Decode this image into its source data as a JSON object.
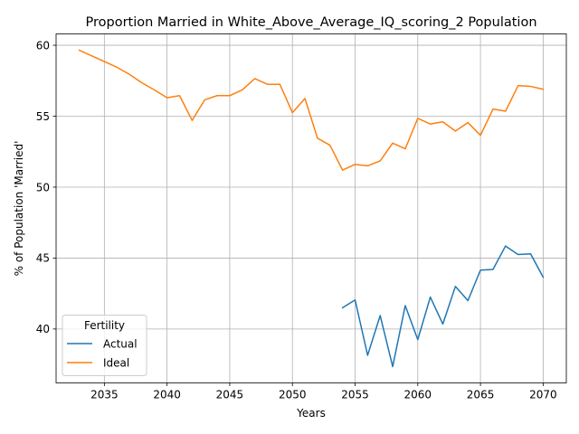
{
  "chart_data": {
    "type": "line",
    "title": "Proportion Married in White_Above_Average_IQ_scoring_2 Population",
    "xlabel": "Years",
    "ylabel": "% of Population 'Married'",
    "xlim": [
      2031.15,
      2071.85
    ],
    "ylim": [
      36.2,
      60.8
    ],
    "xticks": [
      2035,
      2040,
      2045,
      2050,
      2055,
      2060,
      2065,
      2070
    ],
    "yticks": [
      40,
      45,
      50,
      55,
      60
    ],
    "grid": true,
    "legend": {
      "title": "Fertility",
      "placement": "lower-left"
    },
    "series": [
      {
        "name": "Actual",
        "color": "#1f77b4",
        "x": [
          2054,
          2055,
          2056,
          2057,
          2058,
          2059,
          2060,
          2061,
          2062,
          2063,
          2064,
          2065,
          2066,
          2067,
          2068,
          2069,
          2070
        ],
        "values": [
          41.5,
          42.05,
          38.15,
          40.95,
          37.35,
          41.65,
          39.25,
          42.25,
          40.35,
          43.0,
          42.0,
          44.15,
          44.2,
          45.85,
          45.25,
          45.3,
          43.65
        ]
      },
      {
        "name": "Ideal",
        "color": "#ff7f0e",
        "x": [
          2033,
          2034,
          2035,
          2036,
          2037,
          2038,
          2039,
          2040,
          2041,
          2042,
          2043,
          2044,
          2045,
          2046,
          2047,
          2048,
          2049,
          2050,
          2051,
          2052,
          2053,
          2054,
          2055,
          2056,
          2057,
          2058,
          2059,
          2060,
          2061,
          2062,
          2063,
          2064,
          2065,
          2066,
          2067,
          2068,
          2069,
          2070
        ],
        "values": [
          59.65,
          59.25,
          58.85,
          58.45,
          57.95,
          57.35,
          56.85,
          56.3,
          56.45,
          54.7,
          56.15,
          56.45,
          56.45,
          56.85,
          57.65,
          57.25,
          57.25,
          55.25,
          56.25,
          53.45,
          52.95,
          51.2,
          51.6,
          51.5,
          51.85,
          53.1,
          52.7,
          54.85,
          54.45,
          54.6,
          53.95,
          54.55,
          53.65,
          55.5,
          55.35,
          57.15,
          57.1,
          56.9
        ]
      }
    ]
  }
}
